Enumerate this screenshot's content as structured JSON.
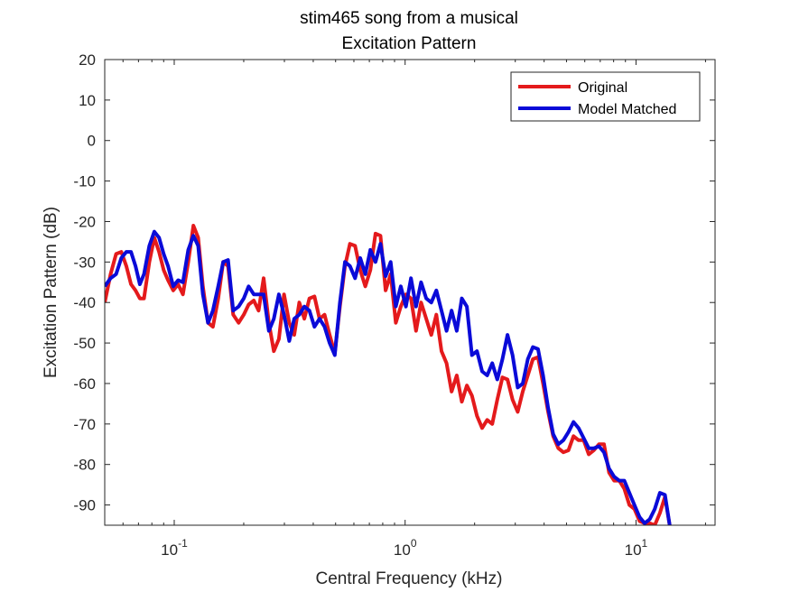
{
  "chart_data": {
    "type": "line",
    "title": "stim465 song from a musical",
    "subtitle": "Excitation Pattern",
    "xlabel": "Central Frequency (kHz)",
    "ylabel": "Excitation Pattern (dB)",
    "xscale": "log",
    "xlim": [
      0.05,
      22
    ],
    "ylim": [
      -95,
      20
    ],
    "yticks": [
      20,
      10,
      0,
      -10,
      -20,
      -30,
      -40,
      -50,
      -60,
      -70,
      -80,
      -90
    ],
    "xticks": [
      {
        "value": 0.1,
        "base": "10",
        "exp": "-1"
      },
      {
        "value": 1,
        "base": "10",
        "exp": "0"
      },
      {
        "value": 10,
        "base": "10",
        "exp": "1"
      }
    ],
    "grid": false,
    "legend_position": "top-right",
    "series": [
      {
        "name": "Original",
        "color": "#e41a1c",
        "points": [
          [
            0.05,
            -40
          ],
          [
            0.053,
            -33
          ],
          [
            0.056,
            -28
          ],
          [
            0.059,
            -27.5
          ],
          [
            0.062,
            -31
          ],
          [
            0.065,
            -35.5
          ],
          [
            0.068,
            -37
          ],
          [
            0.071,
            -39
          ],
          [
            0.074,
            -39
          ],
          [
            0.078,
            -30
          ],
          [
            0.082,
            -24
          ],
          [
            0.086,
            -27.5
          ],
          [
            0.09,
            -32
          ],
          [
            0.094,
            -34.5
          ],
          [
            0.099,
            -37
          ],
          [
            0.104,
            -35.5
          ],
          [
            0.109,
            -38
          ],
          [
            0.115,
            -30
          ],
          [
            0.121,
            -21
          ],
          [
            0.127,
            -24
          ],
          [
            0.133,
            -36
          ],
          [
            0.14,
            -45
          ],
          [
            0.147,
            -46
          ],
          [
            0.155,
            -39
          ],
          [
            0.163,
            -30
          ],
          [
            0.171,
            -31
          ],
          [
            0.18,
            -43
          ],
          [
            0.19,
            -45
          ],
          [
            0.2,
            -43
          ],
          [
            0.21,
            -40.5
          ],
          [
            0.221,
            -39.5
          ],
          [
            0.232,
            -42
          ],
          [
            0.244,
            -34
          ],
          [
            0.257,
            -45
          ],
          [
            0.27,
            -52
          ],
          [
            0.284,
            -49
          ],
          [
            0.299,
            -38
          ],
          [
            0.315,
            -45
          ],
          [
            0.331,
            -48
          ],
          [
            0.348,
            -40
          ],
          [
            0.366,
            -44
          ],
          [
            0.385,
            -39
          ],
          [
            0.405,
            -38.5
          ],
          [
            0.426,
            -44
          ],
          [
            0.448,
            -43
          ],
          [
            0.471,
            -48
          ],
          [
            0.496,
            -52.5
          ],
          [
            0.522,
            -41
          ],
          [
            0.549,
            -31
          ],
          [
            0.577,
            -25.5
          ],
          [
            0.607,
            -26
          ],
          [
            0.639,
            -32
          ],
          [
            0.672,
            -36
          ],
          [
            0.707,
            -32
          ],
          [
            0.744,
            -23
          ],
          [
            0.782,
            -23.5
          ],
          [
            0.823,
            -37
          ],
          [
            0.866,
            -33
          ],
          [
            0.911,
            -45
          ],
          [
            0.958,
            -41
          ],
          [
            1.008,
            -38
          ],
          [
            1.06,
            -39
          ],
          [
            1.115,
            -47
          ],
          [
            1.173,
            -40
          ],
          [
            1.234,
            -44
          ],
          [
            1.298,
            -48
          ],
          [
            1.366,
            -43
          ],
          [
            1.437,
            -52
          ],
          [
            1.511,
            -55
          ],
          [
            1.59,
            -62
          ],
          [
            1.673,
            -58
          ],
          [
            1.76,
            -64.5
          ],
          [
            1.851,
            -60.5
          ],
          [
            1.947,
            -63
          ],
          [
            2.048,
            -68
          ],
          [
            2.155,
            -71
          ],
          [
            2.267,
            -69
          ],
          [
            2.384,
            -70
          ],
          [
            2.508,
            -64
          ],
          [
            2.639,
            -58.5
          ],
          [
            2.776,
            -59
          ],
          [
            2.92,
            -64
          ],
          [
            3.072,
            -67
          ],
          [
            3.231,
            -62
          ],
          [
            3.399,
            -58
          ],
          [
            3.576,
            -54
          ],
          [
            3.762,
            -53.5
          ],
          [
            3.957,
            -60
          ],
          [
            4.163,
            -67
          ],
          [
            4.379,
            -73
          ],
          [
            4.607,
            -76
          ],
          [
            4.846,
            -77
          ],
          [
            5.098,
            -76.5
          ],
          [
            5.363,
            -73
          ],
          [
            5.641,
            -74
          ],
          [
            5.934,
            -74
          ],
          [
            6.243,
            -77.5
          ],
          [
            6.567,
            -76.5
          ],
          [
            6.908,
            -75
          ],
          [
            7.267,
            -75
          ],
          [
            7.645,
            -82
          ],
          [
            8.042,
            -84
          ],
          [
            8.46,
            -84
          ],
          [
            8.9,
            -86
          ],
          [
            9.362,
            -90
          ],
          [
            9.849,
            -91
          ],
          [
            10.36,
            -94
          ],
          [
            10.9,
            -94.5
          ],
          [
            11.47,
            -94.5
          ],
          [
            12.06,
            -95
          ],
          [
            12.69,
            -92
          ],
          [
            13.35,
            -88
          ],
          [
            14.04,
            -95.5
          ]
        ]
      },
      {
        "name": "Model Matched",
        "color": "#0a0ad8",
        "points": [
          [
            0.05,
            -36
          ],
          [
            0.053,
            -34
          ],
          [
            0.056,
            -33
          ],
          [
            0.059,
            -29
          ],
          [
            0.062,
            -27.5
          ],
          [
            0.065,
            -27.5
          ],
          [
            0.068,
            -31
          ],
          [
            0.071,
            -35.5
          ],
          [
            0.074,
            -33
          ],
          [
            0.078,
            -26
          ],
          [
            0.082,
            -22.5
          ],
          [
            0.086,
            -24
          ],
          [
            0.09,
            -28
          ],
          [
            0.094,
            -31
          ],
          [
            0.099,
            -36
          ],
          [
            0.104,
            -34.5
          ],
          [
            0.109,
            -35
          ],
          [
            0.115,
            -27
          ],
          [
            0.121,
            -23.5
          ],
          [
            0.127,
            -26
          ],
          [
            0.133,
            -38
          ],
          [
            0.14,
            -45
          ],
          [
            0.147,
            -42
          ],
          [
            0.155,
            -36
          ],
          [
            0.163,
            -30
          ],
          [
            0.171,
            -29.5
          ],
          [
            0.18,
            -42
          ],
          [
            0.19,
            -41
          ],
          [
            0.2,
            -39
          ],
          [
            0.21,
            -36
          ],
          [
            0.221,
            -38
          ],
          [
            0.232,
            -38
          ],
          [
            0.244,
            -38
          ],
          [
            0.257,
            -47
          ],
          [
            0.27,
            -44
          ],
          [
            0.284,
            -38
          ],
          [
            0.299,
            -43
          ],
          [
            0.315,
            -49.5
          ],
          [
            0.331,
            -44
          ],
          [
            0.348,
            -43
          ],
          [
            0.366,
            -41
          ],
          [
            0.385,
            -42
          ],
          [
            0.405,
            -46
          ],
          [
            0.426,
            -44
          ],
          [
            0.448,
            -46
          ],
          [
            0.471,
            -50
          ],
          [
            0.496,
            -53
          ],
          [
            0.522,
            -40
          ],
          [
            0.549,
            -30
          ],
          [
            0.577,
            -31
          ],
          [
            0.607,
            -34
          ],
          [
            0.639,
            -29
          ],
          [
            0.672,
            -33
          ],
          [
            0.707,
            -27
          ],
          [
            0.744,
            -30
          ],
          [
            0.782,
            -25.5
          ],
          [
            0.823,
            -33.5
          ],
          [
            0.866,
            -30
          ],
          [
            0.911,
            -41
          ],
          [
            0.958,
            -36
          ],
          [
            1.008,
            -41
          ],
          [
            1.06,
            -34
          ],
          [
            1.115,
            -41
          ],
          [
            1.173,
            -35
          ],
          [
            1.234,
            -39
          ],
          [
            1.298,
            -40
          ],
          [
            1.366,
            -37
          ],
          [
            1.437,
            -42
          ],
          [
            1.511,
            -47
          ],
          [
            1.59,
            -42
          ],
          [
            1.673,
            -47
          ],
          [
            1.76,
            -39
          ],
          [
            1.851,
            -41
          ],
          [
            1.947,
            -53
          ],
          [
            2.048,
            -52
          ],
          [
            2.155,
            -57
          ],
          [
            2.267,
            -58
          ],
          [
            2.384,
            -55
          ],
          [
            2.508,
            -59
          ],
          [
            2.639,
            -54
          ],
          [
            2.776,
            -48
          ],
          [
            2.92,
            -53
          ],
          [
            3.072,
            -61
          ],
          [
            3.231,
            -60
          ],
          [
            3.399,
            -54
          ],
          [
            3.576,
            -51
          ],
          [
            3.762,
            -51.5
          ],
          [
            3.957,
            -58
          ],
          [
            4.163,
            -66
          ],
          [
            4.379,
            -72.5
          ],
          [
            4.607,
            -75
          ],
          [
            4.846,
            -74
          ],
          [
            5.098,
            -72
          ],
          [
            5.363,
            -69.5
          ],
          [
            5.641,
            -71
          ],
          [
            5.934,
            -73.5
          ],
          [
            6.243,
            -76
          ],
          [
            6.567,
            -76
          ],
          [
            6.908,
            -75.5
          ],
          [
            7.267,
            -77
          ],
          [
            7.645,
            -81
          ],
          [
            8.042,
            -83
          ],
          [
            8.46,
            -84
          ],
          [
            8.9,
            -84
          ],
          [
            9.362,
            -87
          ],
          [
            9.849,
            -90
          ],
          [
            10.36,
            -93
          ],
          [
            10.9,
            -94.5
          ],
          [
            11.47,
            -93.5
          ],
          [
            12.06,
            -91
          ],
          [
            12.69,
            -87
          ],
          [
            13.35,
            -87.5
          ],
          [
            14.04,
            -95.5
          ]
        ]
      }
    ]
  }
}
